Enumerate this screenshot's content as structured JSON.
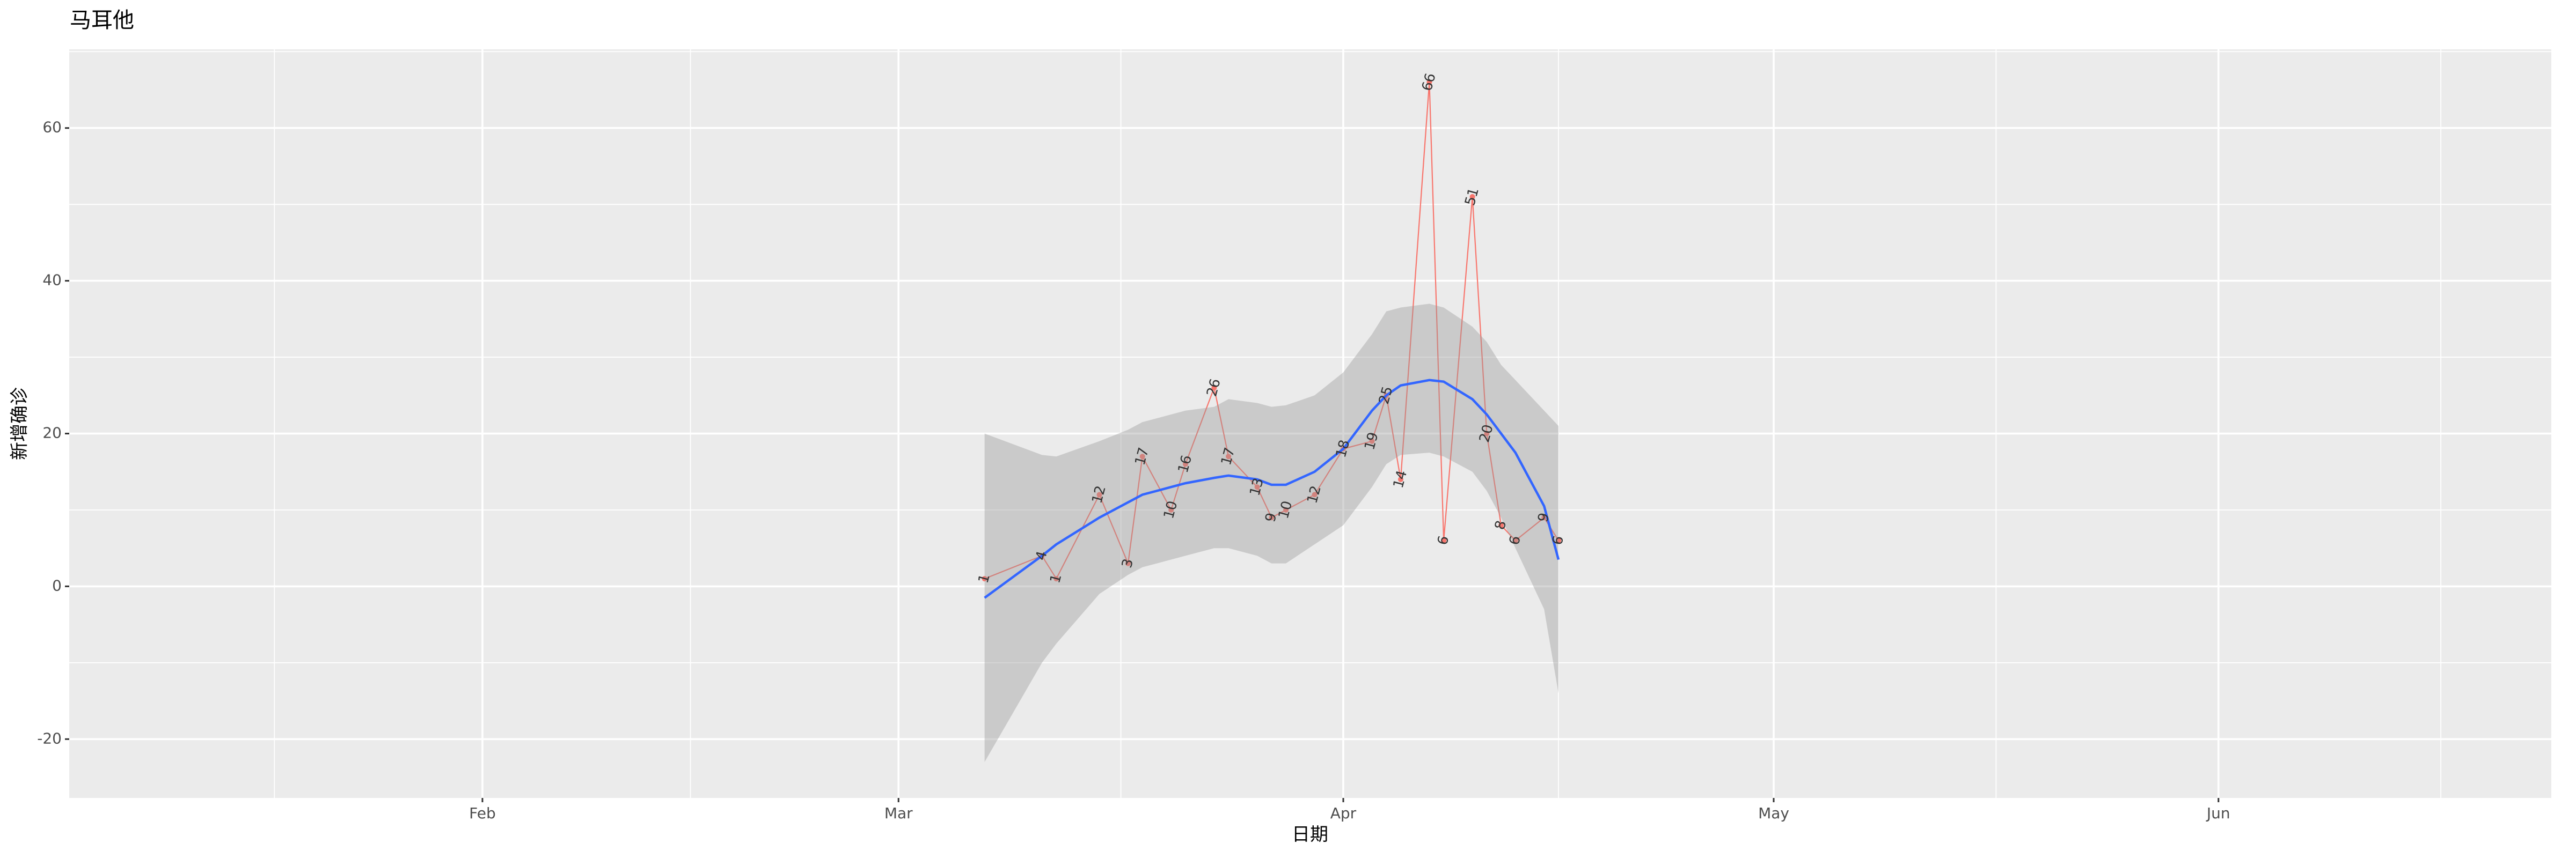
{
  "chart_data": {
    "type": "line",
    "title": "马耳他",
    "x_label": "日期",
    "y_label": "新增确诊",
    "x": [
      67,
      71,
      72,
      75,
      77,
      78,
      80,
      81,
      83,
      84,
      86,
      87,
      88,
      90,
      92,
      94,
      95,
      96,
      98,
      99,
      101,
      102,
      103,
      104,
      106,
      107
    ],
    "series": [
      {
        "color": "#F8766D",
        "values": [
          1,
          4,
          1,
          12,
          3,
          17,
          10,
          16,
          26,
          17,
          13,
          9,
          10,
          12,
          18,
          19,
          25,
          14,
          66,
          6,
          51,
          20,
          8,
          6,
          9,
          6
        ]
      }
    ],
    "smooth": {
      "color": "#3366FF",
      "band_color": "#999999",
      "values": [
        -1.5,
        4,
        5.5,
        9,
        11,
        12,
        13,
        13.5,
        14.2,
        14.5,
        14,
        13.3,
        13.3,
        15,
        18,
        23,
        25,
        26.3,
        27,
        26.8,
        24.5,
        22.5,
        20,
        17.5,
        10.5,
        3.5
      ],
      "upper": [
        20,
        17.2,
        17,
        19,
        20.5,
        21.5,
        22.5,
        23,
        23.5,
        24.5,
        24,
        23.5,
        23.7,
        25,
        28,
        33,
        36,
        36.5,
        37,
        36.5,
        34,
        32,
        29,
        27,
        23,
        21
      ],
      "lower": [
        -23,
        -10,
        -7.5,
        -1,
        1.5,
        2.5,
        3.5,
        4,
        5,
        5,
        4,
        3,
        3,
        5.5,
        8,
        13,
        16,
        17.2,
        17.5,
        17,
        15,
        12.5,
        9,
        5,
        -3,
        -14
      ]
    },
    "xlim": [
      3.2,
      176.2
    ],
    "xticks": [
      {
        "value": 32,
        "label": "Feb"
      },
      {
        "value": 61,
        "label": "Mar"
      },
      {
        "value": 92,
        "label": "Apr"
      },
      {
        "value": 122,
        "label": "May"
      },
      {
        "value": 153,
        "label": "Jun"
      }
    ],
    "ylim": [
      -27.7,
      70.3
    ],
    "yticks": [
      -20,
      0,
      20,
      40,
      60
    ],
    "grid": true
  }
}
